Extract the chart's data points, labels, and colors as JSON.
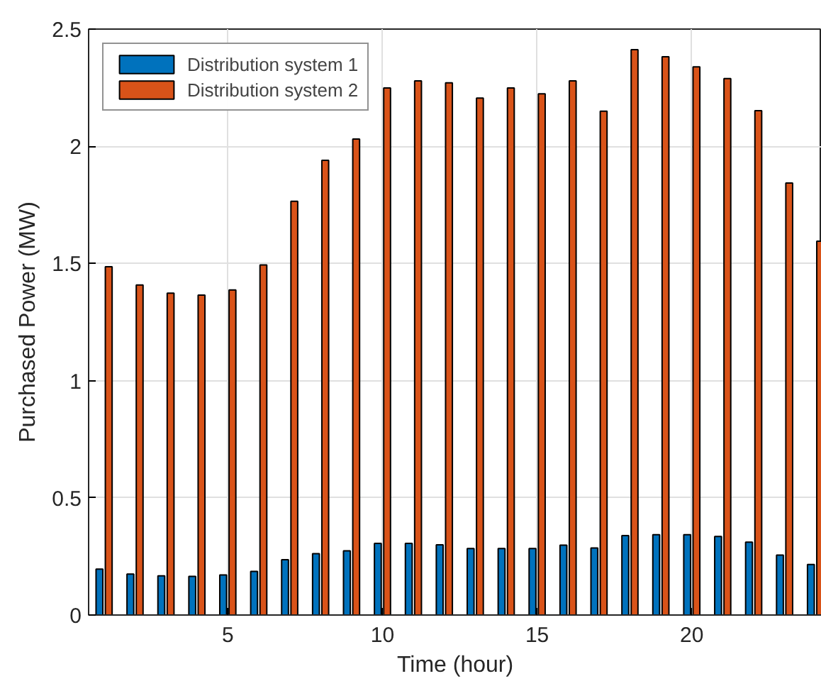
{
  "chart_data": {
    "type": "bar",
    "xlabel": "Time (hour)",
    "ylabel": "Purchased Power (MW)",
    "x": [
      1,
      2,
      3,
      4,
      5,
      6,
      7,
      8,
      9,
      10,
      11,
      12,
      13,
      14,
      15,
      16,
      17,
      18,
      19,
      20,
      21,
      22,
      23,
      24
    ],
    "series": [
      {
        "name": "Distribution system 1",
        "color": "#0072bd",
        "values": [
          0.196,
          0.175,
          0.167,
          0.165,
          0.171,
          0.186,
          0.236,
          0.262,
          0.274,
          0.306,
          0.306,
          0.3,
          0.284,
          0.284,
          0.284,
          0.298,
          0.286,
          0.339,
          0.343,
          0.343,
          0.335,
          0.311,
          0.256,
          0.216
        ]
      },
      {
        "name": "Distribution system 2",
        "color": "#d95319",
        "values": [
          1.486,
          1.408,
          1.373,
          1.365,
          1.387,
          1.494,
          1.765,
          1.94,
          2.031,
          2.249,
          2.279,
          2.271,
          2.206,
          2.249,
          2.224,
          2.279,
          2.15,
          2.412,
          2.382,
          2.339,
          2.289,
          2.152,
          1.843,
          1.595
        ]
      }
    ],
    "xlim": [
      0.5,
      24.2
    ],
    "xticks": [
      5,
      10,
      15,
      20
    ],
    "ylim": [
      0,
      2.5
    ],
    "yticks": [
      0,
      0.5,
      1,
      1.5,
      2,
      2.5
    ],
    "grid": true,
    "legend": "top left"
  }
}
